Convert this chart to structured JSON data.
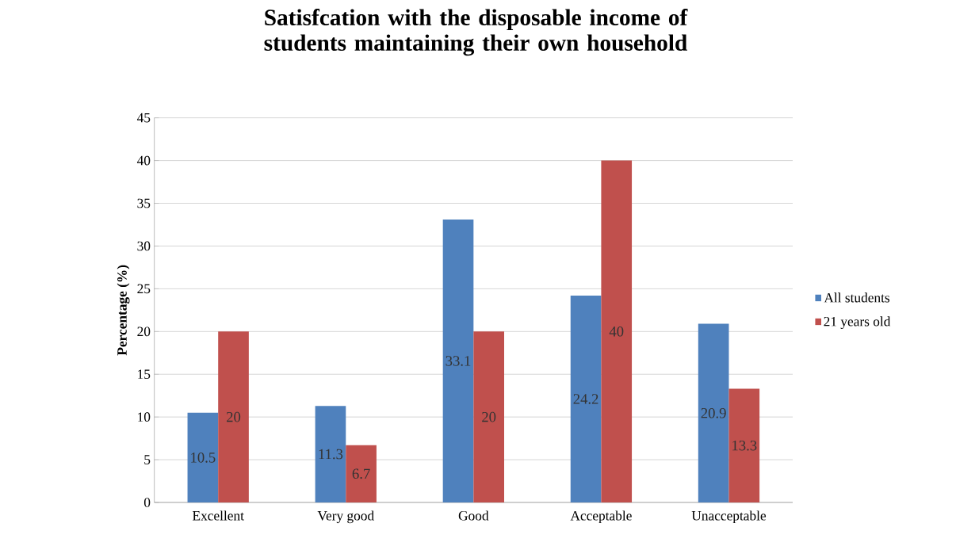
{
  "chart_data": {
    "type": "bar",
    "title": "Satisfcation with the disposable income of students maintaining their own household",
    "ylabel": "Percentage (%)",
    "categories": [
      "Excellent",
      "Very good",
      "Good",
      "Acceptable",
      "Unacceptable"
    ],
    "series": [
      {
        "name": "All students",
        "color": "#4f81bd",
        "values": [
          10.5,
          11.3,
          33.1,
          24.2,
          20.9
        ]
      },
      {
        "name": "21 years old",
        "color": "#c0504d",
        "values": [
          20,
          6.7,
          20,
          40,
          13.3
        ]
      }
    ],
    "ylim": [
      0,
      45
    ],
    "yticks": [
      0,
      5,
      10,
      15,
      20,
      25,
      30,
      35,
      40,
      45
    ],
    "grid": "y",
    "legend": "right",
    "data_labels": true
  }
}
